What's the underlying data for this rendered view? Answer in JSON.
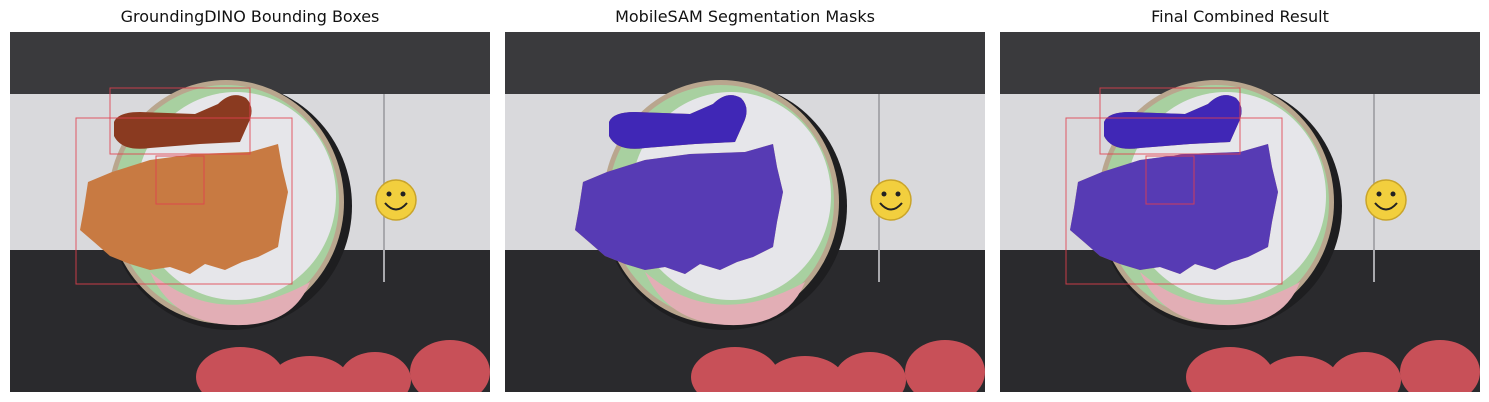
{
  "panels": [
    {
      "title": "GroundingDINO Bounding Boxes",
      "show_boxes": true,
      "show_masks": false
    },
    {
      "title": "MobileSAM Segmentation Masks",
      "show_boxes": false,
      "show_masks": true
    },
    {
      "title": "Final Combined Result",
      "show_boxes": true,
      "show_masks": true
    }
  ],
  "colors": {
    "box": "#e0404e",
    "mask": "#2b22e0",
    "rice": "#c87a42",
    "chicken": "#8a3a20",
    "plate": "#e6e6ea",
    "plate_green": "#a8d0a0",
    "plate_pink": "#e2aeb5",
    "plate_rim": "#b9a68e",
    "table": "#d9d9dc",
    "dark": "#2a2a2d",
    "cushion": "#c85058",
    "smiley": "#f2cf3e"
  },
  "icons": {
    "smiley": "smiley-face-icon"
  }
}
